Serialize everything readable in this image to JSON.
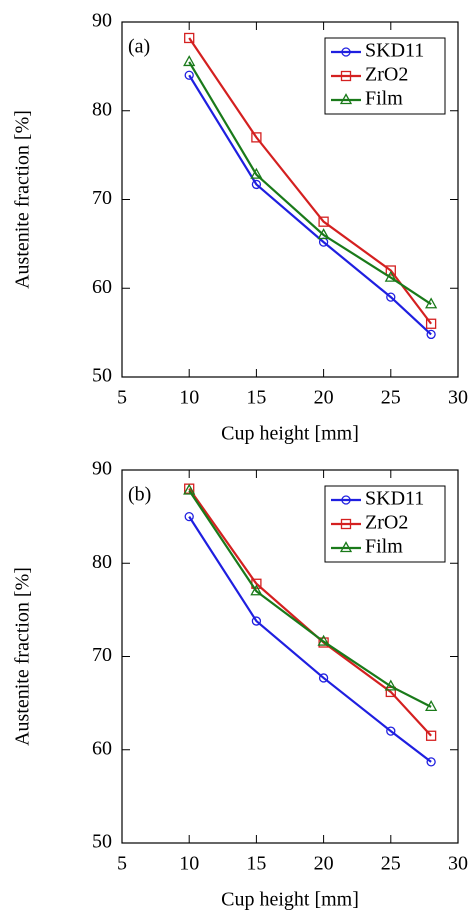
{
  "chart_data": [
    {
      "type": "line",
      "annotation": "(a)",
      "x_label": "Cup height [mm]",
      "y_label": "Austenite fraction [%]",
      "x": [
        10,
        15,
        20,
        25,
        28
      ],
      "xlim": [
        5,
        30
      ],
      "xticks": [
        5,
        10,
        15,
        20,
        25,
        30
      ],
      "ylim": [
        50,
        90
      ],
      "yticks": [
        50,
        60,
        70,
        80,
        90
      ],
      "legend": "upper right",
      "series": [
        {
          "name": "SKD11",
          "color": "#1f1fe0",
          "marker": "circle",
          "values": [
            84.0,
            71.7,
            65.2,
            59.0,
            54.8
          ]
        },
        {
          "name": "ZrO2",
          "color": "#d42020",
          "marker": "square",
          "values": [
            88.2,
            77.0,
            67.5,
            62.0,
            56.0
          ]
        },
        {
          "name": "Film",
          "color": "#1a7a1a",
          "marker": "triangle",
          "values": [
            85.5,
            72.8,
            66.0,
            61.2,
            58.2
          ]
        }
      ]
    },
    {
      "type": "line",
      "annotation": "(b)",
      "x_label": "Cup height [mm]",
      "y_label": "Austenite fraction [%]",
      "x": [
        10,
        15,
        20,
        25,
        28
      ],
      "xlim": [
        5,
        30
      ],
      "xticks": [
        5,
        10,
        15,
        20,
        25,
        30
      ],
      "ylim": [
        50,
        90
      ],
      "yticks": [
        50,
        60,
        70,
        80,
        90
      ],
      "legend": "upper right",
      "series": [
        {
          "name": "SKD11",
          "color": "#1f1fe0",
          "marker": "circle",
          "values": [
            85.0,
            73.8,
            67.7,
            62.0,
            58.7
          ]
        },
        {
          "name": "ZrO2",
          "color": "#d42020",
          "marker": "square",
          "values": [
            88.0,
            77.8,
            71.5,
            66.2,
            61.5
          ]
        },
        {
          "name": "Film",
          "color": "#1a7a1a",
          "marker": "triangle",
          "values": [
            87.8,
            77.0,
            71.6,
            66.8,
            64.6
          ]
        }
      ]
    }
  ]
}
